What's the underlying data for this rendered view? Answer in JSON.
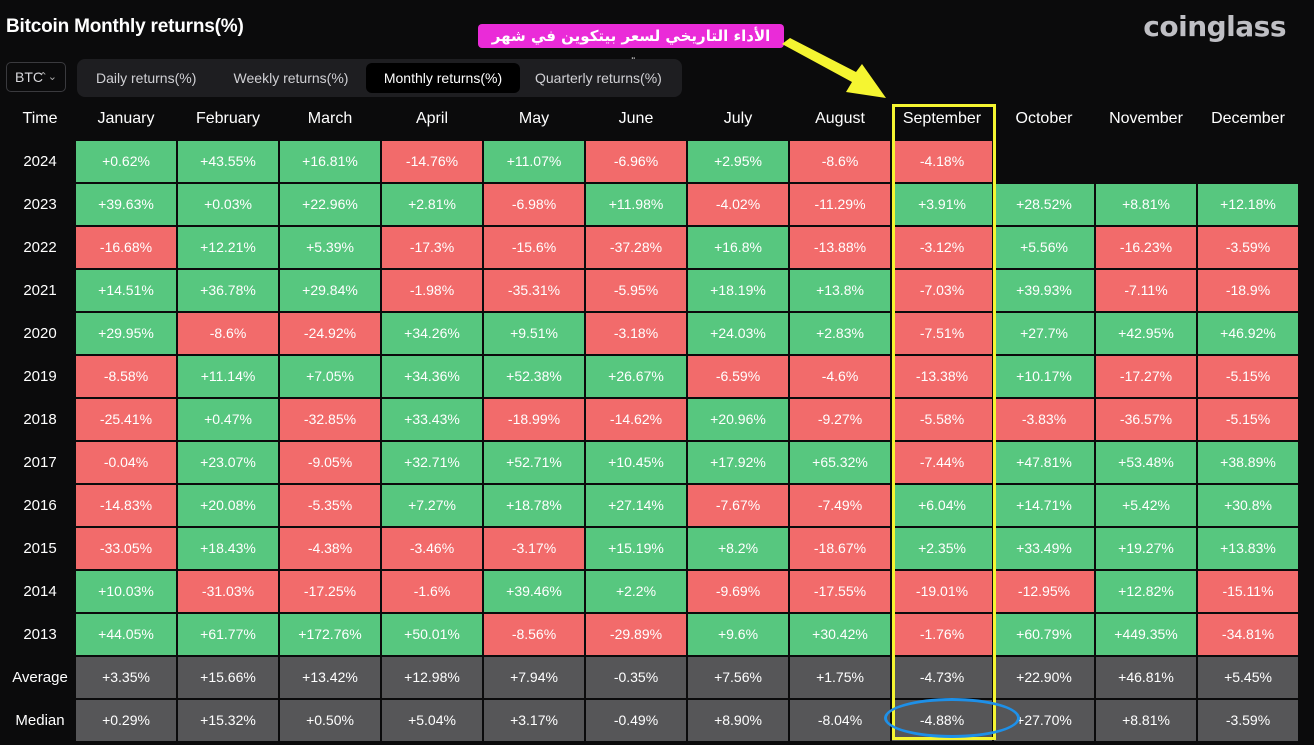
{
  "page": {
    "title": "Bitcoin Monthly returns(%)",
    "brand": "coinglass",
    "callout": "الأداء التاريخي لسعر بيتكوين في شهر سبتمبر"
  },
  "controls": {
    "coin": "BTC",
    "tabs": [
      "Daily returns(%)",
      "Weekly returns(%)",
      "Monthly returns(%)",
      "Quarterly returns(%)"
    ],
    "active_tab": 2
  },
  "colors": {
    "positive": "#57c77f",
    "negative": "#f26b6b",
    "summary": "#565658",
    "highlight": "#f5f531",
    "ring": "#1e90e8",
    "callout": "#ea2bd8"
  },
  "table": {
    "corner": "Time",
    "months": [
      "January",
      "February",
      "March",
      "April",
      "May",
      "June",
      "July",
      "August",
      "September",
      "October",
      "November",
      "December"
    ],
    "rows": [
      {
        "label": "2024",
        "values": [
          "+0.62%",
          "+43.55%",
          "+16.81%",
          "-14.76%",
          "+11.07%",
          "-6.96%",
          "+2.95%",
          "-8.6%",
          "-4.18%",
          "",
          "",
          ""
        ]
      },
      {
        "label": "2023",
        "values": [
          "+39.63%",
          "+0.03%",
          "+22.96%",
          "+2.81%",
          "-6.98%",
          "+11.98%",
          "-4.02%",
          "-11.29%",
          "+3.91%",
          "+28.52%",
          "+8.81%",
          "+12.18%"
        ]
      },
      {
        "label": "2022",
        "values": [
          "-16.68%",
          "+12.21%",
          "+5.39%",
          "-17.3%",
          "-15.6%",
          "-37.28%",
          "+16.8%",
          "-13.88%",
          "-3.12%",
          "+5.56%",
          "-16.23%",
          "-3.59%"
        ]
      },
      {
        "label": "2021",
        "values": [
          "+14.51%",
          "+36.78%",
          "+29.84%",
          "-1.98%",
          "-35.31%",
          "-5.95%",
          "+18.19%",
          "+13.8%",
          "-7.03%",
          "+39.93%",
          "-7.11%",
          "-18.9%"
        ]
      },
      {
        "label": "2020",
        "values": [
          "+29.95%",
          "-8.6%",
          "-24.92%",
          "+34.26%",
          "+9.51%",
          "-3.18%",
          "+24.03%",
          "+2.83%",
          "-7.51%",
          "+27.7%",
          "+42.95%",
          "+46.92%"
        ]
      },
      {
        "label": "2019",
        "values": [
          "-8.58%",
          "+11.14%",
          "+7.05%",
          "+34.36%",
          "+52.38%",
          "+26.67%",
          "-6.59%",
          "-4.6%",
          "-13.38%",
          "+10.17%",
          "-17.27%",
          "-5.15%"
        ]
      },
      {
        "label": "2018",
        "values": [
          "-25.41%",
          "+0.47%",
          "-32.85%",
          "+33.43%",
          "-18.99%",
          "-14.62%",
          "+20.96%",
          "-9.27%",
          "-5.58%",
          "-3.83%",
          "-36.57%",
          "-5.15%"
        ]
      },
      {
        "label": "2017",
        "values": [
          "-0.04%",
          "+23.07%",
          "-9.05%",
          "+32.71%",
          "+52.71%",
          "+10.45%",
          "+17.92%",
          "+65.32%",
          "-7.44%",
          "+47.81%",
          "+53.48%",
          "+38.89%"
        ]
      },
      {
        "label": "2016",
        "values": [
          "-14.83%",
          "+20.08%",
          "-5.35%",
          "+7.27%",
          "+18.78%",
          "+27.14%",
          "-7.67%",
          "-7.49%",
          "+6.04%",
          "+14.71%",
          "+5.42%",
          "+30.8%"
        ]
      },
      {
        "label": "2015",
        "values": [
          "-33.05%",
          "+18.43%",
          "-4.38%",
          "-3.46%",
          "-3.17%",
          "+15.19%",
          "+8.2%",
          "-18.67%",
          "+2.35%",
          "+33.49%",
          "+19.27%",
          "+13.83%"
        ]
      },
      {
        "label": "2014",
        "values": [
          "+10.03%",
          "-31.03%",
          "-17.25%",
          "-1.6%",
          "+39.46%",
          "+2.2%",
          "-9.69%",
          "-17.55%",
          "-19.01%",
          "-12.95%",
          "+12.82%",
          "-15.11%"
        ]
      },
      {
        "label": "2013",
        "values": [
          "+44.05%",
          "+61.77%",
          "+172.76%",
          "+50.01%",
          "-8.56%",
          "-29.89%",
          "+9.6%",
          "+30.42%",
          "-1.76%",
          "+60.79%",
          "+449.35%",
          "-34.81%"
        ]
      }
    ],
    "summary": [
      {
        "label": "Average",
        "values": [
          "+3.35%",
          "+15.66%",
          "+13.42%",
          "+12.98%",
          "+7.94%",
          "-0.35%",
          "+7.56%",
          "+1.75%",
          "-4.73%",
          "+22.90%",
          "+46.81%",
          "+5.45%"
        ]
      },
      {
        "label": "Median",
        "values": [
          "+0.29%",
          "+15.32%",
          "+0.50%",
          "+5.04%",
          "+3.17%",
          "-0.49%",
          "+8.90%",
          "-8.04%",
          "-4.88%",
          "+27.70%",
          "+8.81%",
          "-3.59%"
        ]
      }
    ]
  }
}
